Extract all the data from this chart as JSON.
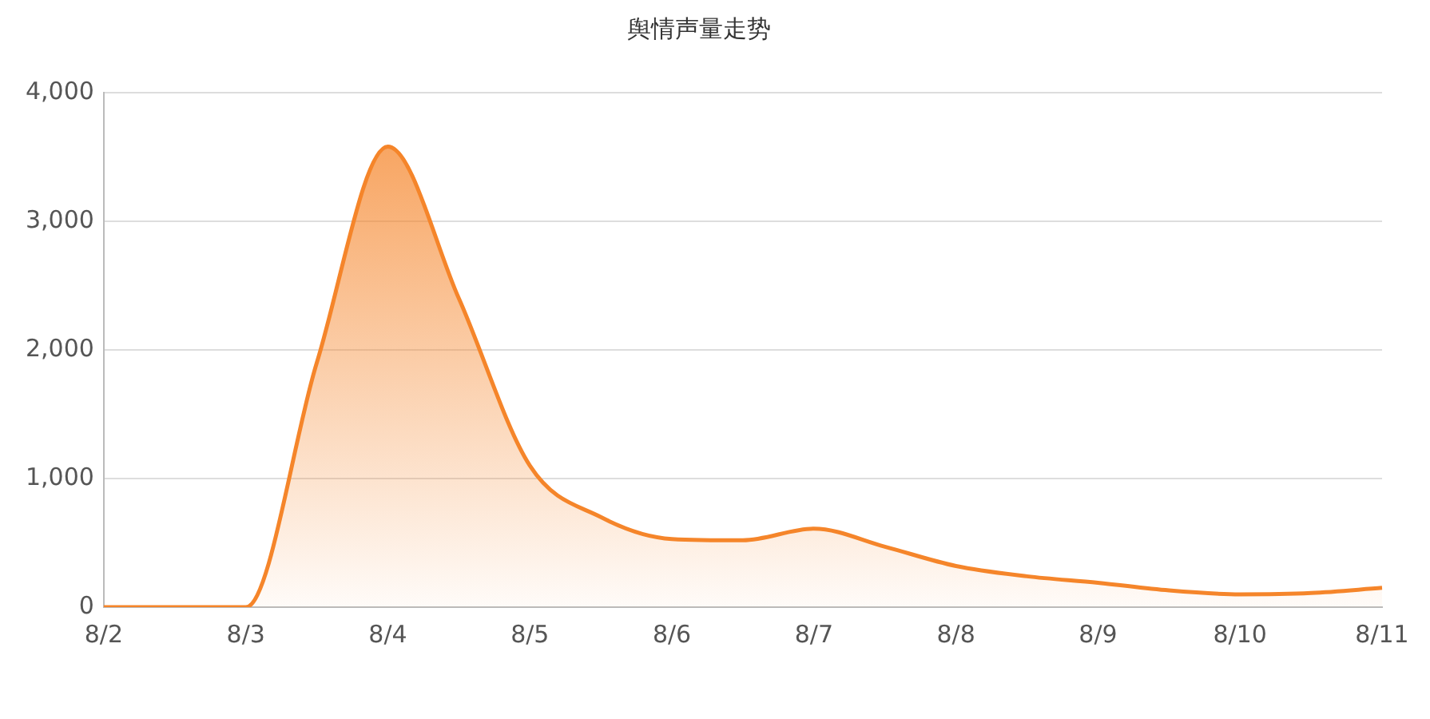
{
  "chart_data": {
    "type": "area",
    "title": "舆情声量走势",
    "categories": [
      "8/2",
      null,
      "8/3",
      null,
      "8/4",
      null,
      "8/5",
      null,
      "8/6",
      null,
      "8/7",
      null,
      "8/8",
      null,
      "8/9",
      null,
      "8/10",
      null,
      "8/11"
    ],
    "series": [
      {
        "color": "#f5852a",
        "values": [
          0,
          0,
          0,
          1900,
          3580,
          2400,
          1100,
          700,
          530,
          520,
          610,
          470,
          320,
          240,
          190,
          130,
          100,
          110,
          150
        ]
      }
    ],
    "ylim": [
      0,
      4000
    ],
    "yticks": [
      0,
      {
        "value": 1000,
        "label": "1,000"
      },
      {
        "value": 2000,
        "label": "2,000"
      },
      {
        "value": 3000,
        "label": "3,000"
      },
      {
        "value": 4000,
        "label": "4,000"
      }
    ],
    "grid": "y",
    "legend": false,
    "marker": "none"
  }
}
